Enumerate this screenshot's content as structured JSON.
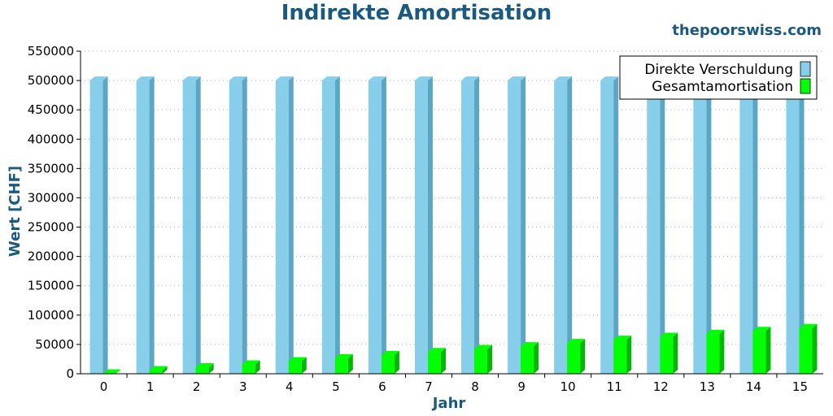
{
  "title": "Indirekte Amortisation",
  "site": "thepoorswiss.com",
  "colors": {
    "title": "#1b5a80",
    "series1": "#87ceeb",
    "series1_dark": "#5aa6c4",
    "series2": "#00ff00",
    "series2_dark": "#00b800",
    "grid": "#aaaaaa"
  },
  "chart_data": {
    "type": "bar",
    "title": "Indirekte Amortisation",
    "xlabel": "Jahr",
    "ylabel": "Wert [CHF]",
    "ylim": [
      0,
      550000
    ],
    "yticks": [
      0,
      50000,
      100000,
      150000,
      200000,
      250000,
      300000,
      350000,
      400000,
      450000,
      500000,
      550000
    ],
    "grid": true,
    "legend_position": "top-right",
    "categories": [
      "0",
      "1",
      "2",
      "3",
      "4",
      "5",
      "6",
      "7",
      "8",
      "9",
      "10",
      "11",
      "12",
      "13",
      "14",
      "15"
    ],
    "series": [
      {
        "name": "Direkte Verschuldung",
        "values": [
          500000,
          500000,
          500000,
          500000,
          500000,
          500000,
          500000,
          500000,
          500000,
          500000,
          500000,
          500000,
          500000,
          500000,
          500000,
          500000
        ]
      },
      {
        "name": "Gesamtamortisation",
        "values": [
          500,
          6000,
          11000,
          16000,
          21500,
          26500,
          32000,
          37000,
          42000,
          47000,
          52500,
          58000,
          63000,
          68000,
          73000,
          78000
        ]
      }
    ]
  }
}
